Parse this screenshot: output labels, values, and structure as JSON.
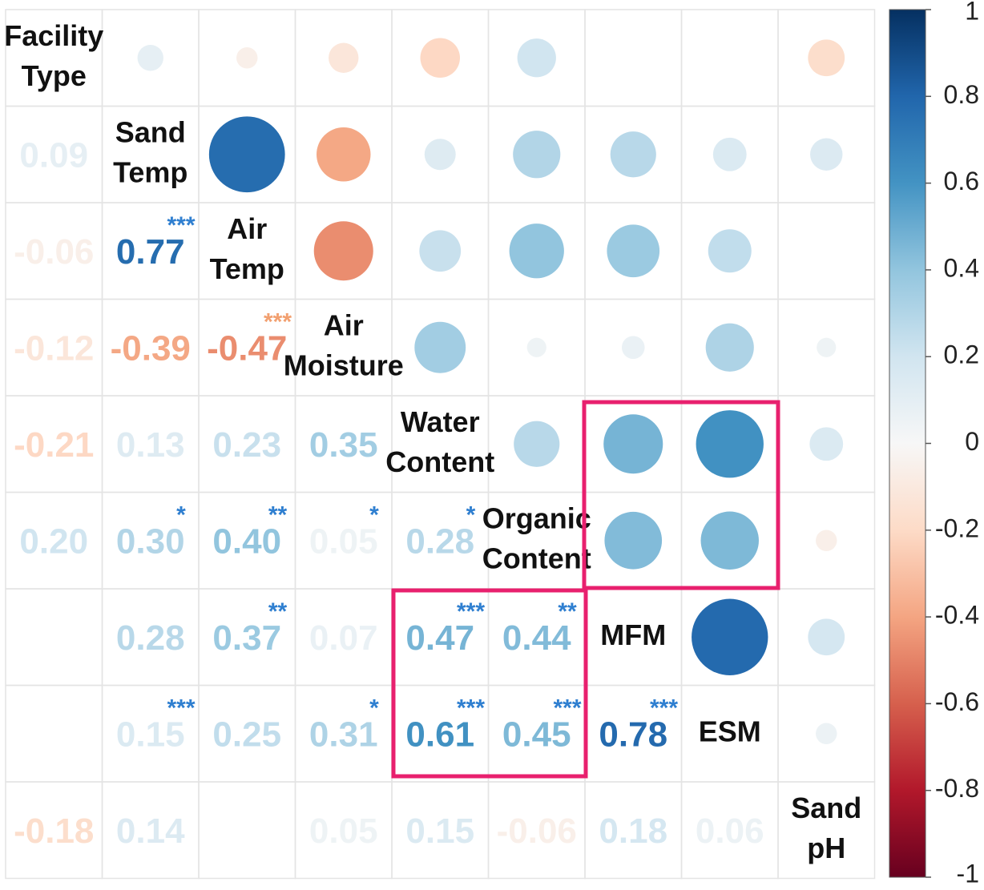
{
  "chart_data": {
    "type": "corrplot",
    "labels": [
      [
        "Facility",
        "Type"
      ],
      [
        "Sand",
        "Temp"
      ],
      [
        "Air",
        "Temp"
      ],
      [
        "Air",
        "Moisture"
      ],
      [
        "Water",
        "Content"
      ],
      [
        "Organic",
        "Content"
      ],
      [
        "MFM"
      ],
      [
        "ESM"
      ],
      [
        "Sand",
        "pH"
      ]
    ],
    "values": [
      [
        null,
        null,
        null,
        null,
        null,
        null,
        null,
        null,
        null
      ],
      [
        0.09,
        null,
        null,
        null,
        null,
        null,
        null,
        null,
        null
      ],
      [
        -0.06,
        0.77,
        null,
        null,
        null,
        null,
        null,
        null,
        null
      ],
      [
        -0.12,
        -0.39,
        -0.47,
        null,
        null,
        null,
        null,
        null,
        null
      ],
      [
        -0.21,
        0.13,
        0.23,
        0.35,
        null,
        null,
        null,
        null,
        null
      ],
      [
        0.2,
        0.3,
        0.4,
        0.05,
        0.28,
        null,
        null,
        null,
        null
      ],
      [
        null,
        0.28,
        0.37,
        0.07,
        0.47,
        0.44,
        null,
        null,
        null
      ],
      [
        null,
        0.15,
        0.25,
        0.31,
        0.61,
        0.45,
        0.78,
        null,
        null
      ],
      [
        -0.18,
        0.14,
        null,
        0.05,
        0.15,
        -0.06,
        0.18,
        0.06,
        null
      ]
    ],
    "value_labels": [
      [
        null,
        null,
        null,
        null,
        null,
        null,
        null,
        null,
        null
      ],
      [
        "0.09",
        null,
        null,
        null,
        null,
        null,
        null,
        null,
        null
      ],
      [
        "-0.06",
        "0.77",
        null,
        null,
        null,
        null,
        null,
        null,
        null
      ],
      [
        "-0.12",
        "-0.39",
        "-0.47",
        null,
        null,
        null,
        null,
        null,
        null
      ],
      [
        "-0.21",
        "0.13",
        "0.23",
        "0.35",
        null,
        null,
        null,
        null,
        null
      ],
      [
        "0.20",
        "0.30",
        "0.40",
        "0.05",
        "0.28",
        null,
        null,
        null,
        null
      ],
      [
        null,
        "0.28",
        "0.37",
        "0.07",
        "0.47",
        "0.44",
        null,
        null,
        null
      ],
      [
        null,
        "0.15",
        "0.25",
        "0.31",
        "0.61",
        "0.45",
        "0.78",
        null,
        null
      ],
      [
        "-0.18",
        "0.14",
        null,
        "0.05",
        "0.15",
        "-0.06",
        "0.18",
        "0.06",
        null
      ]
    ],
    "stars": [
      [
        null,
        null,
        null,
        null,
        null,
        null,
        null,
        null,
        null
      ],
      [
        null,
        null,
        null,
        null,
        null,
        null,
        null,
        null,
        null
      ],
      [
        null,
        "***",
        null,
        null,
        null,
        null,
        null,
        null,
        null
      ],
      [
        null,
        null,
        "***",
        null,
        null,
        null,
        null,
        null,
        null
      ],
      [
        null,
        null,
        null,
        null,
        null,
        null,
        null,
        null,
        null
      ],
      [
        null,
        "*",
        "**",
        "*",
        "*",
        null,
        null,
        null,
        null
      ],
      [
        null,
        null,
        "**",
        null,
        "***",
        "**",
        null,
        null,
        null
      ],
      [
        null,
        "***",
        null,
        "*",
        "***",
        "***",
        "***",
        null,
        null
      ],
      [
        null,
        null,
        null,
        null,
        null,
        null,
        null,
        null,
        null
      ]
    ],
    "colorscale": [
      "#67001f",
      "#b2182b",
      "#d6604d",
      "#f4a582",
      "#fddbc7",
      "#f7f7f7",
      "#d1e5f0",
      "#92c5de",
      "#4393c3",
      "#2166ac",
      "#053061"
    ],
    "ylim": [
      -1,
      1
    ],
    "yticks": [
      -1,
      -0.8,
      -0.6,
      -0.4,
      -0.2,
      0,
      0.2,
      0.4,
      0.6,
      0.8,
      1
    ]
  }
}
